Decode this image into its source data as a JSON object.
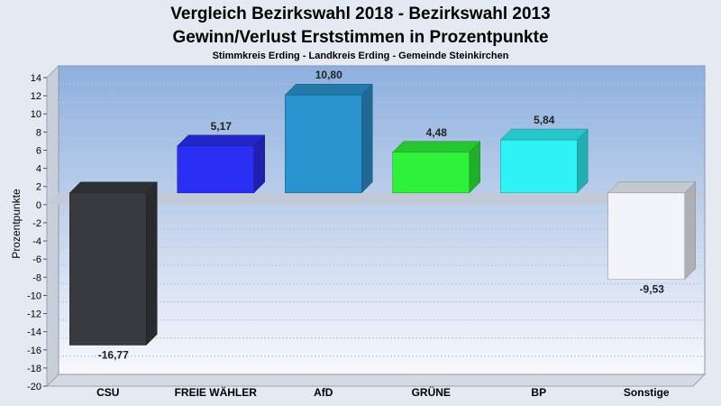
{
  "chart_data": {
    "type": "bar",
    "title": "Vergleich Bezirkswahl 2018 - Bezirkswahl 2013",
    "subtitle": "Gewinn/Verlust Erststimmen in Prozentpunkte",
    "caption": "Stimmkreis Erding - Landkreis Erding - Gemeinde Steinkirchen",
    "xlabel": "",
    "ylabel": "Prozentpunkte",
    "ylim": [
      -20,
      14
    ],
    "ytick_step": 2,
    "grid": true,
    "legend": "none",
    "categories": [
      "CSU",
      "FREIE WÄHLER",
      "AfD",
      "GRÜNE",
      "BP",
      "Sonstige"
    ],
    "values": [
      -16.77,
      5.17,
      10.8,
      4.48,
      5.84,
      -9.53
    ],
    "value_labels": [
      "-16,77",
      "5,17",
      "10,80",
      "4,48",
      "5,84",
      "-9,53"
    ],
    "colors": [
      "#383a40",
      "#2a2ef2",
      "#2993cf",
      "#2ef23a",
      "#2ef2f6",
      "#f2f4fa"
    ]
  }
}
